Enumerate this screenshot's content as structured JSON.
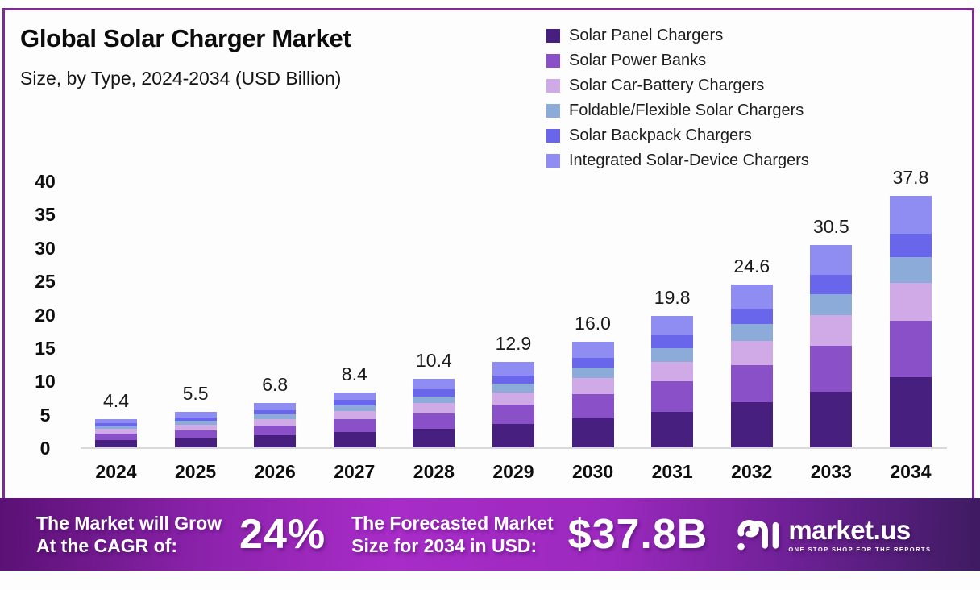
{
  "title": "Global Solar Charger Market",
  "subtitle": "Size, by Type, 2024-2034 (USD Billion)",
  "chart_data": {
    "type": "bar",
    "stacked": true,
    "title": "Global Solar Charger Market Size, by Type, 2024-2034 (USD Billion)",
    "xlabel": "",
    "ylabel": "",
    "ylim": [
      0,
      40
    ],
    "yticks": [
      0,
      5,
      10,
      15,
      20,
      25,
      30,
      35,
      40
    ],
    "grid": false,
    "legend_position": "top-right",
    "categories": [
      "2024",
      "2025",
      "2026",
      "2027",
      "2028",
      "2029",
      "2030",
      "2031",
      "2032",
      "2033",
      "2034"
    ],
    "totals": [
      "4.4",
      "5.5",
      "6.8",
      "8.4",
      "10.4",
      "12.9",
      "16.0",
      "19.8",
      "24.6",
      "30.5",
      "37.8"
    ],
    "series": [
      {
        "name": "Solar Panel Chargers",
        "color": "#47207f",
        "values": [
          1.2,
          1.5,
          1.9,
          2.4,
          2.9,
          3.6,
          4.5,
          5.5,
          6.9,
          8.5,
          10.6
        ]
      },
      {
        "name": "Solar Power Banks",
        "color": "#8a50c7",
        "values": [
          1.0,
          1.2,
          1.5,
          1.9,
          2.3,
          2.9,
          3.6,
          4.5,
          5.5,
          6.9,
          8.5
        ]
      },
      {
        "name": "Solar Car-Battery Chargers",
        "color": "#cfaae6",
        "values": [
          0.7,
          0.8,
          1.0,
          1.3,
          1.6,
          1.9,
          2.4,
          3.0,
          3.7,
          4.6,
          5.7
        ]
      },
      {
        "name": "Foldable/Flexible Solar Chargers",
        "color": "#8cabd8",
        "values": [
          0.4,
          0.6,
          0.7,
          0.8,
          1.0,
          1.3,
          1.6,
          2.0,
          2.5,
          3.1,
          3.8
        ]
      },
      {
        "name": "Solar Backpack Chargers",
        "color": "#6a66ec",
        "values": [
          0.4,
          0.5,
          0.6,
          0.8,
          1.0,
          1.2,
          1.5,
          1.9,
          2.3,
          2.9,
          3.6
        ]
      },
      {
        "name": "Integrated Solar-Device Chargers",
        "color": "#8f8df2",
        "values": [
          0.7,
          0.9,
          1.1,
          1.2,
          1.6,
          2.0,
          2.4,
          2.9,
          3.7,
          4.5,
          5.6
        ]
      }
    ]
  },
  "banner": {
    "cagr_line1": "The Market will Grow",
    "cagr_line2": "At the CAGR of:",
    "cagr_value": "24%",
    "forecast_line1": "The Forecasted Market",
    "forecast_line2": "Size for 2034 in USD:",
    "forecast_value": "$37.8B",
    "logo_text": "market.us",
    "logo_tagline": "ONE STOP SHOP FOR THE REPORTS"
  },
  "colors": {
    "frame_border": "#7c2b8e",
    "axis_baseline": "#d9d9d9",
    "banner_left": "#5a1174",
    "banner_center": "#a82cc8",
    "banner_right": "#3e1b61",
    "text": "#0c0c0c"
  }
}
